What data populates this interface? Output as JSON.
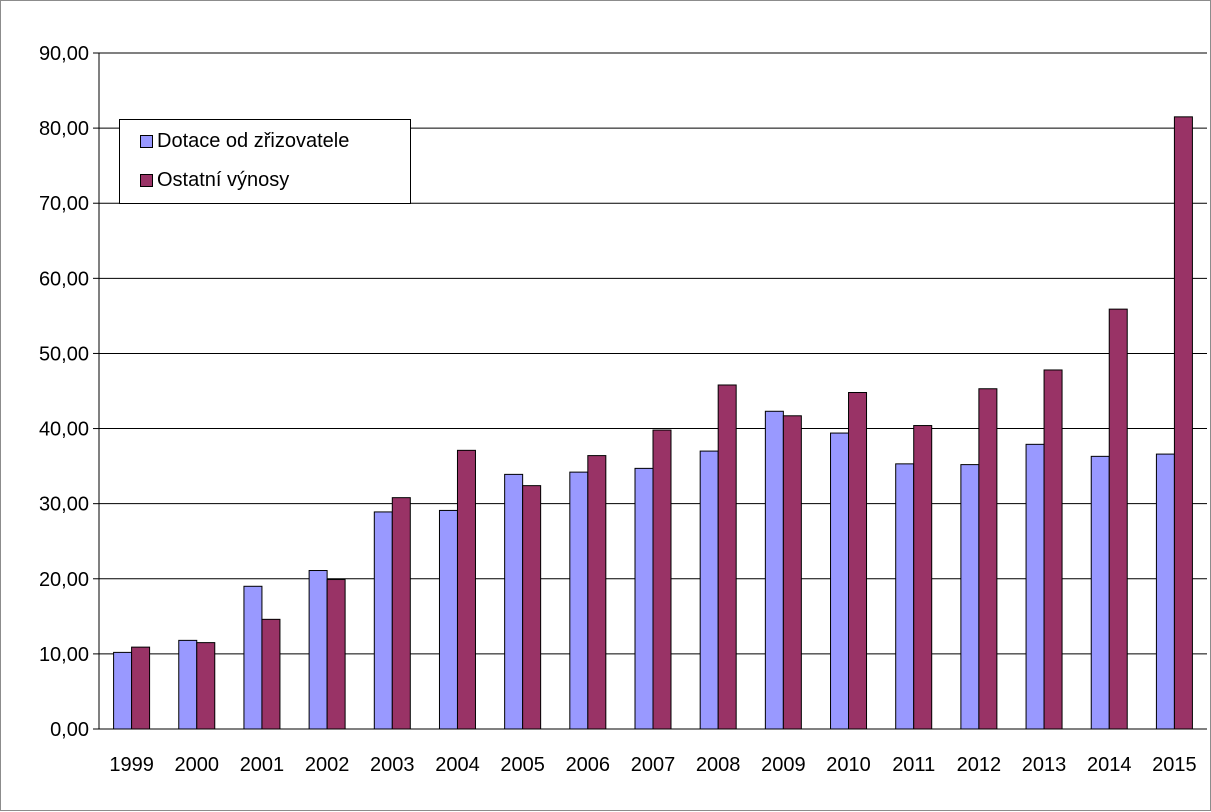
{
  "chart_data": {
    "type": "bar",
    "categories": [
      "1999",
      "2000",
      "2001",
      "2002",
      "2003",
      "2004",
      "2005",
      "2006",
      "2007",
      "2008",
      "2009",
      "2010",
      "2011",
      "2012",
      "2013",
      "2014",
      "2015"
    ],
    "series": [
      {
        "name": "Dotace od zřizovatele",
        "color": "#9999ff",
        "values": [
          10.2,
          11.8,
          19.0,
          21.1,
          28.9,
          29.1,
          33.9,
          34.2,
          34.7,
          37.0,
          42.3,
          39.4,
          35.3,
          35.2,
          37.9,
          36.3,
          36.6
        ]
      },
      {
        "name": "Ostatní výnosy",
        "color": "#993366",
        "values": [
          10.9,
          11.5,
          14.6,
          19.9,
          30.8,
          37.1,
          32.4,
          36.4,
          39.8,
          45.8,
          41.7,
          44.8,
          40.4,
          45.3,
          47.8,
          55.9,
          81.5
        ]
      }
    ],
    "y_tick_labels": [
      "0,00",
      "10,00",
      "20,00",
      "30,00",
      "40,00",
      "50,00",
      "60,00",
      "70,00",
      "80,00",
      "90,00"
    ],
    "ylim": [
      0,
      90
    ],
    "grid": true,
    "legend_position": "top-left"
  }
}
